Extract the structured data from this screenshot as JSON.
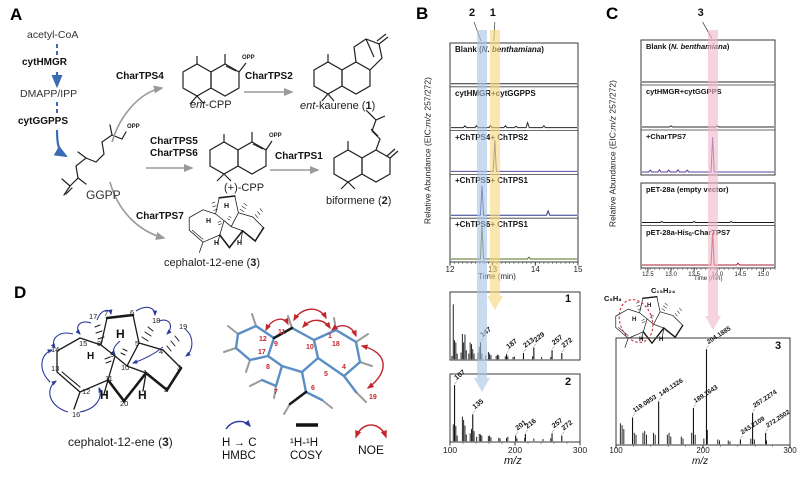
{
  "panels": {
    "a": "A",
    "b": "B",
    "c": "C",
    "d": "D"
  },
  "panelA": {
    "acetyl_coa": "acetyl-CoA",
    "cythmgr": "cytHMGR",
    "dmapp_ipp": "DMAPP/IPP",
    "cytggpps": "cytGGPPS",
    "ggpp": "GGPP",
    "opp": "OPP",
    "h": "H",
    "chartps4": "CharTPS4",
    "chartps2": "CharTPS2",
    "chartps5": "CharTPS5",
    "chartps6": "CharTPS6",
    "chartps1": "CharTPS1",
    "chartps7": "CharTPS7",
    "ent_cpp": {
      "it": "ent",
      "rest": "-CPP"
    },
    "ent_kaurene": {
      "it": "ent",
      "rest": "-kaurene (",
      "num": "1",
      "close": ")"
    },
    "plus_cpp": "(+)-CPP",
    "biformene": {
      "rest": "biformene (",
      "num": "2",
      "close": ")"
    },
    "cephalotene": {
      "rest": "cephalot-12-ene (",
      "num": "3",
      "close": ")"
    }
  },
  "chart_data": [
    {
      "id": "chromatograms-B",
      "type": "line",
      "subtype": "chromatogram-stack",
      "ylabel_parts": {
        "pre": "Relative Abundance (EIC:",
        "it": "m/z",
        "post": " 257/272)"
      },
      "xlabel": "Time (min)",
      "xlim": [
        12,
        15
      ],
      "xticks": [
        12,
        13,
        14,
        15
      ],
      "xtick_labels": [
        "12",
        "13",
        "14",
        "15"
      ],
      "minor_tick": 0.1,
      "callouts": [
        {
          "label": "2",
          "x": 12.75,
          "band_color": "#a9c3e5",
          "dx": -13
        },
        {
          "label": "1",
          "x": 13.05,
          "band_color": "#f5d87e",
          "dx": -5
        }
      ],
      "traces": [
        {
          "label_parts": [
            {
              "t": "Blank ("
            },
            {
              "t": "N. benthamiana",
              "i": true
            },
            {
              "t": ")"
            }
          ],
          "color": "#2b2b2b",
          "peaks": []
        },
        {
          "label_parts": [
            {
              "t": "cytHMGR+cytGGPPS"
            }
          ],
          "color": "#2b2b2b",
          "peaks": [
            {
              "x": 12.35,
              "h": 0.05
            },
            {
              "x": 12.62,
              "h": 0.05
            },
            {
              "x": 12.95,
              "h": 0.06
            },
            {
              "x": 13.3,
              "h": 0.05
            },
            {
              "x": 13.55,
              "h": 0.04
            },
            {
              "x": 13.82,
              "h": 0.14
            },
            {
              "x": 14.2,
              "h": 0.05
            }
          ]
        },
        {
          "label_parts": [
            {
              "t": "+ChTPS4+ ChTPS2"
            }
          ],
          "color": "#584a9e",
          "peaks": [
            {
              "x": 13.05,
              "h": 0.88
            }
          ]
        },
        {
          "label_parts": [
            {
              "t": "+ChTPS5+ ChTPS1"
            }
          ],
          "color": "#2c3a8e",
          "peaks": [
            {
              "x": 12.75,
              "h": 0.82
            },
            {
              "x": 14.3,
              "h": 0.12
            }
          ]
        },
        {
          "label_parts": [
            {
              "t": "+ChTPS6+ ChTPS1"
            }
          ],
          "color": "#4f6f1e",
          "peaks": [
            {
              "x": 12.75,
              "h": 0.95
            },
            {
              "x": 13.85,
              "h": 0.05
            }
          ]
        }
      ]
    },
    {
      "id": "chromatograms-C-invivo",
      "type": "line",
      "subtype": "chromatogram-stack",
      "ylabel_parts": {
        "pre": "Relative Abundance (EIC:",
        "it": "m/z",
        "post": " 257/272)"
      },
      "xlim": [
        12.35,
        15.25
      ],
      "minor_tick": 0.1,
      "callouts": [
        {
          "label": "3",
          "x": 13.9,
          "band_color": "#f0b9c9",
          "dx": -15
        }
      ],
      "traces": [
        {
          "label_parts": [
            {
              "t": "Blank ("
            },
            {
              "t": "N. benthamiana",
              "i": true
            },
            {
              "t": ")"
            }
          ],
          "color": "#2b2b2b",
          "peaks": []
        },
        {
          "label_parts": [
            {
              "t": "cytHMGR+cytGGPPS"
            }
          ],
          "color": "#2b2b2b",
          "peaks": [
            {
              "x": 13.0,
              "h": 0.03
            },
            {
              "x": 14.0,
              "h": 0.03
            }
          ]
        },
        {
          "label_parts": [
            {
              "t": "+CharTPS7"
            }
          ],
          "color": "#5b3f99",
          "peaks": [
            {
              "x": 12.55,
              "h": 0.05
            },
            {
              "x": 12.75,
              "h": 0.06
            },
            {
              "x": 12.95,
              "h": 0.05
            },
            {
              "x": 13.15,
              "h": 0.06
            },
            {
              "x": 13.35,
              "h": 0.05
            },
            {
              "x": 13.9,
              "h": 0.95
            }
          ]
        }
      ]
    },
    {
      "id": "chromatograms-C-invitro",
      "type": "line",
      "subtype": "chromatogram-stack",
      "xlabel": "Time (min)",
      "xlim": [
        12.35,
        15.25
      ],
      "xticks": [
        12.5,
        13.0,
        13.5,
        14.0,
        14.5,
        15.0
      ],
      "xtick_labels": [
        "12.5",
        "13.0",
        "13.5",
        "14.0",
        "14.5",
        "15.0"
      ],
      "minor_tick": 0.1,
      "traces": [
        {
          "label_parts": [
            {
              "t": "pET-28a (empty vector)"
            }
          ],
          "color": "#1a1a1a",
          "peaks": [
            {
              "x": 12.8,
              "h": 0.03
            },
            {
              "x": 13.5,
              "h": 0.03
            },
            {
              "x": 14.3,
              "h": 0.03
            }
          ]
        },
        {
          "label_parts": [
            {
              "t": "pET-28a-His"
            },
            {
              "t": "6",
              "sub": true
            },
            {
              "t": "-CharTPS7"
            }
          ],
          "color": "#aa1f30",
          "peaks": [
            {
              "x": 13.9,
              "h": 0.93
            },
            {
              "x": 14.45,
              "h": 0.05
            }
          ]
        }
      ]
    },
    {
      "id": "mass-spectrum-1",
      "type": "mass-spectrum",
      "tag": "1",
      "xlim": [
        100,
        300
      ],
      "xticks": [
        100,
        200,
        300
      ],
      "xtick_labels": [
        "100",
        "200",
        "300"
      ],
      "labeled_peaks": [
        {
          "mz": 147,
          "i": 0.3,
          "label": "147"
        },
        {
          "mz": 187,
          "i": 0.09,
          "label": "187"
        },
        {
          "mz": 213,
          "i": 0.11,
          "label": "213"
        },
        {
          "mz": 229,
          "i": 0.21,
          "label": "229"
        },
        {
          "mz": 257,
          "i": 0.16,
          "label": "257"
        },
        {
          "mz": 272,
          "i": 0.11,
          "label": "272"
        }
      ],
      "peaks": [
        [
          103,
          0.06
        ],
        [
          105,
          0.98
        ],
        [
          107,
          0.34
        ],
        [
          109,
          0.3
        ],
        [
          111,
          0.1
        ],
        [
          117,
          0.12
        ],
        [
          119,
          0.45
        ],
        [
          121,
          0.3
        ],
        [
          123,
          0.44
        ],
        [
          125,
          0.16
        ],
        [
          129,
          0.1
        ],
        [
          131,
          0.3
        ],
        [
          133,
          0.27
        ],
        [
          135,
          0.18
        ],
        [
          137,
          0.1
        ],
        [
          143,
          0.12
        ],
        [
          145,
          0.22
        ],
        [
          149,
          0.1
        ],
        [
          155,
          0.07
        ],
        [
          159,
          0.13
        ],
        [
          161,
          0.1
        ],
        [
          163,
          0.07
        ],
        [
          171,
          0.06
        ],
        [
          173,
          0.08
        ],
        [
          175,
          0.07
        ],
        [
          185,
          0.05
        ],
        [
          189,
          0.05
        ],
        [
          197,
          0.04
        ],
        [
          199,
          0.05
        ],
        [
          227,
          0.05
        ],
        [
          241,
          0.04
        ],
        [
          255,
          0.04
        ]
      ]
    },
    {
      "id": "mass-spectrum-2",
      "type": "mass-spectrum",
      "tag": "2",
      "xlabel": "m/z",
      "xlim": [
        100,
        300
      ],
      "xticks": [
        100,
        200,
        300
      ],
      "xtick_labels": [
        "100",
        "200",
        "300"
      ],
      "labeled_peaks": [
        {
          "mz": 107,
          "i": 1.0,
          "label": "107"
        },
        {
          "mz": 135,
          "i": 0.48,
          "label": "135"
        },
        {
          "mz": 201,
          "i": 0.1,
          "label": "201"
        },
        {
          "mz": 216,
          "i": 0.13,
          "label": "216"
        },
        {
          "mz": 257,
          "i": 0.14,
          "label": "257"
        },
        {
          "mz": 272,
          "i": 0.1,
          "label": "272"
        }
      ],
      "peaks": [
        [
          105,
          0.3
        ],
        [
          109,
          0.27
        ],
        [
          111,
          0.1
        ],
        [
          119,
          0.44
        ],
        [
          121,
          0.38
        ],
        [
          123,
          0.28
        ],
        [
          125,
          0.12
        ],
        [
          131,
          0.14
        ],
        [
          133,
          0.22
        ],
        [
          137,
          0.18
        ],
        [
          141,
          0.08
        ],
        [
          145,
          0.13
        ],
        [
          147,
          0.12
        ],
        [
          149,
          0.1
        ],
        [
          159,
          0.09
        ],
        [
          161,
          0.1
        ],
        [
          163,
          0.07
        ],
        [
          175,
          0.06
        ],
        [
          177,
          0.05
        ],
        [
          187,
          0.06
        ],
        [
          189,
          0.08
        ],
        [
          203,
          0.05
        ],
        [
          215,
          0.06
        ],
        [
          229,
          0.05
        ],
        [
          243,
          0.04
        ],
        [
          255,
          0.05
        ]
      ]
    },
    {
      "id": "mass-spectrum-3",
      "type": "mass-spectrum",
      "tag": "3",
      "xlabel": "m/z",
      "formula_left": "C₅H₈",
      "formula_right": "C₁₅H₂₄",
      "xlim": [
        100,
        300
      ],
      "xticks": [
        100,
        200,
        300
      ],
      "xtick_labels": [
        "100",
        "200",
        "300"
      ],
      "labeled_peaks": [
        {
          "mz": 119,
          "i": 0.28,
          "label": "119.0853"
        },
        {
          "mz": 149,
          "i": 0.45,
          "label": "149.1326"
        },
        {
          "mz": 189,
          "i": 0.38,
          "label": "189.1643"
        },
        {
          "mz": 204,
          "i": 1.0,
          "label": "204.1885"
        },
        {
          "mz": 243,
          "i": 0.05,
          "label": "243.2109"
        },
        {
          "mz": 257,
          "i": 0.33,
          "label": "257.2274"
        },
        {
          "mz": 272,
          "i": 0.12,
          "label": "272.2502"
        }
      ],
      "peaks": [
        [
          105,
          0.22
        ],
        [
          107,
          0.2
        ],
        [
          109,
          0.16
        ],
        [
          121,
          0.12
        ],
        [
          123,
          0.1
        ],
        [
          131,
          0.12
        ],
        [
          133,
          0.14
        ],
        [
          135,
          0.1
        ],
        [
          143,
          0.12
        ],
        [
          145,
          0.1
        ],
        [
          159,
          0.1
        ],
        [
          161,
          0.12
        ],
        [
          163,
          0.08
        ],
        [
          175,
          0.08
        ],
        [
          177,
          0.06
        ],
        [
          187,
          0.12
        ],
        [
          191,
          0.1
        ],
        [
          201,
          0.06
        ],
        [
          205,
          0.15
        ],
        [
          217,
          0.05
        ],
        [
          219,
          0.04
        ],
        [
          229,
          0.04
        ],
        [
          231,
          0.03
        ],
        [
          255,
          0.06
        ],
        [
          259,
          0.05
        ],
        [
          273,
          0.04
        ]
      ]
    }
  ],
  "panelD": {
    "atom_numbers": [
      "1",
      "2",
      "3",
      "4",
      "5",
      "6",
      "7",
      "8",
      "9",
      "10",
      "11",
      "12",
      "13",
      "14",
      "15",
      "16",
      "17",
      "18",
      "19",
      "20"
    ],
    "model_atom_numbers": [
      "12",
      "11",
      "9",
      "17",
      "8",
      "7",
      "10",
      "1",
      "18",
      "5",
      "6",
      "4",
      "19"
    ],
    "h_label": "H",
    "caption": {
      "rest": "cephalot-12-ene (",
      "num": "3",
      "close": ")"
    },
    "legend": {
      "hmbc_line1": "H → C",
      "hmbc_line2": "HMBC",
      "cosy_line1": "¹H-¹H",
      "cosy_line2": "COSY",
      "noe": "NOE"
    }
  }
}
